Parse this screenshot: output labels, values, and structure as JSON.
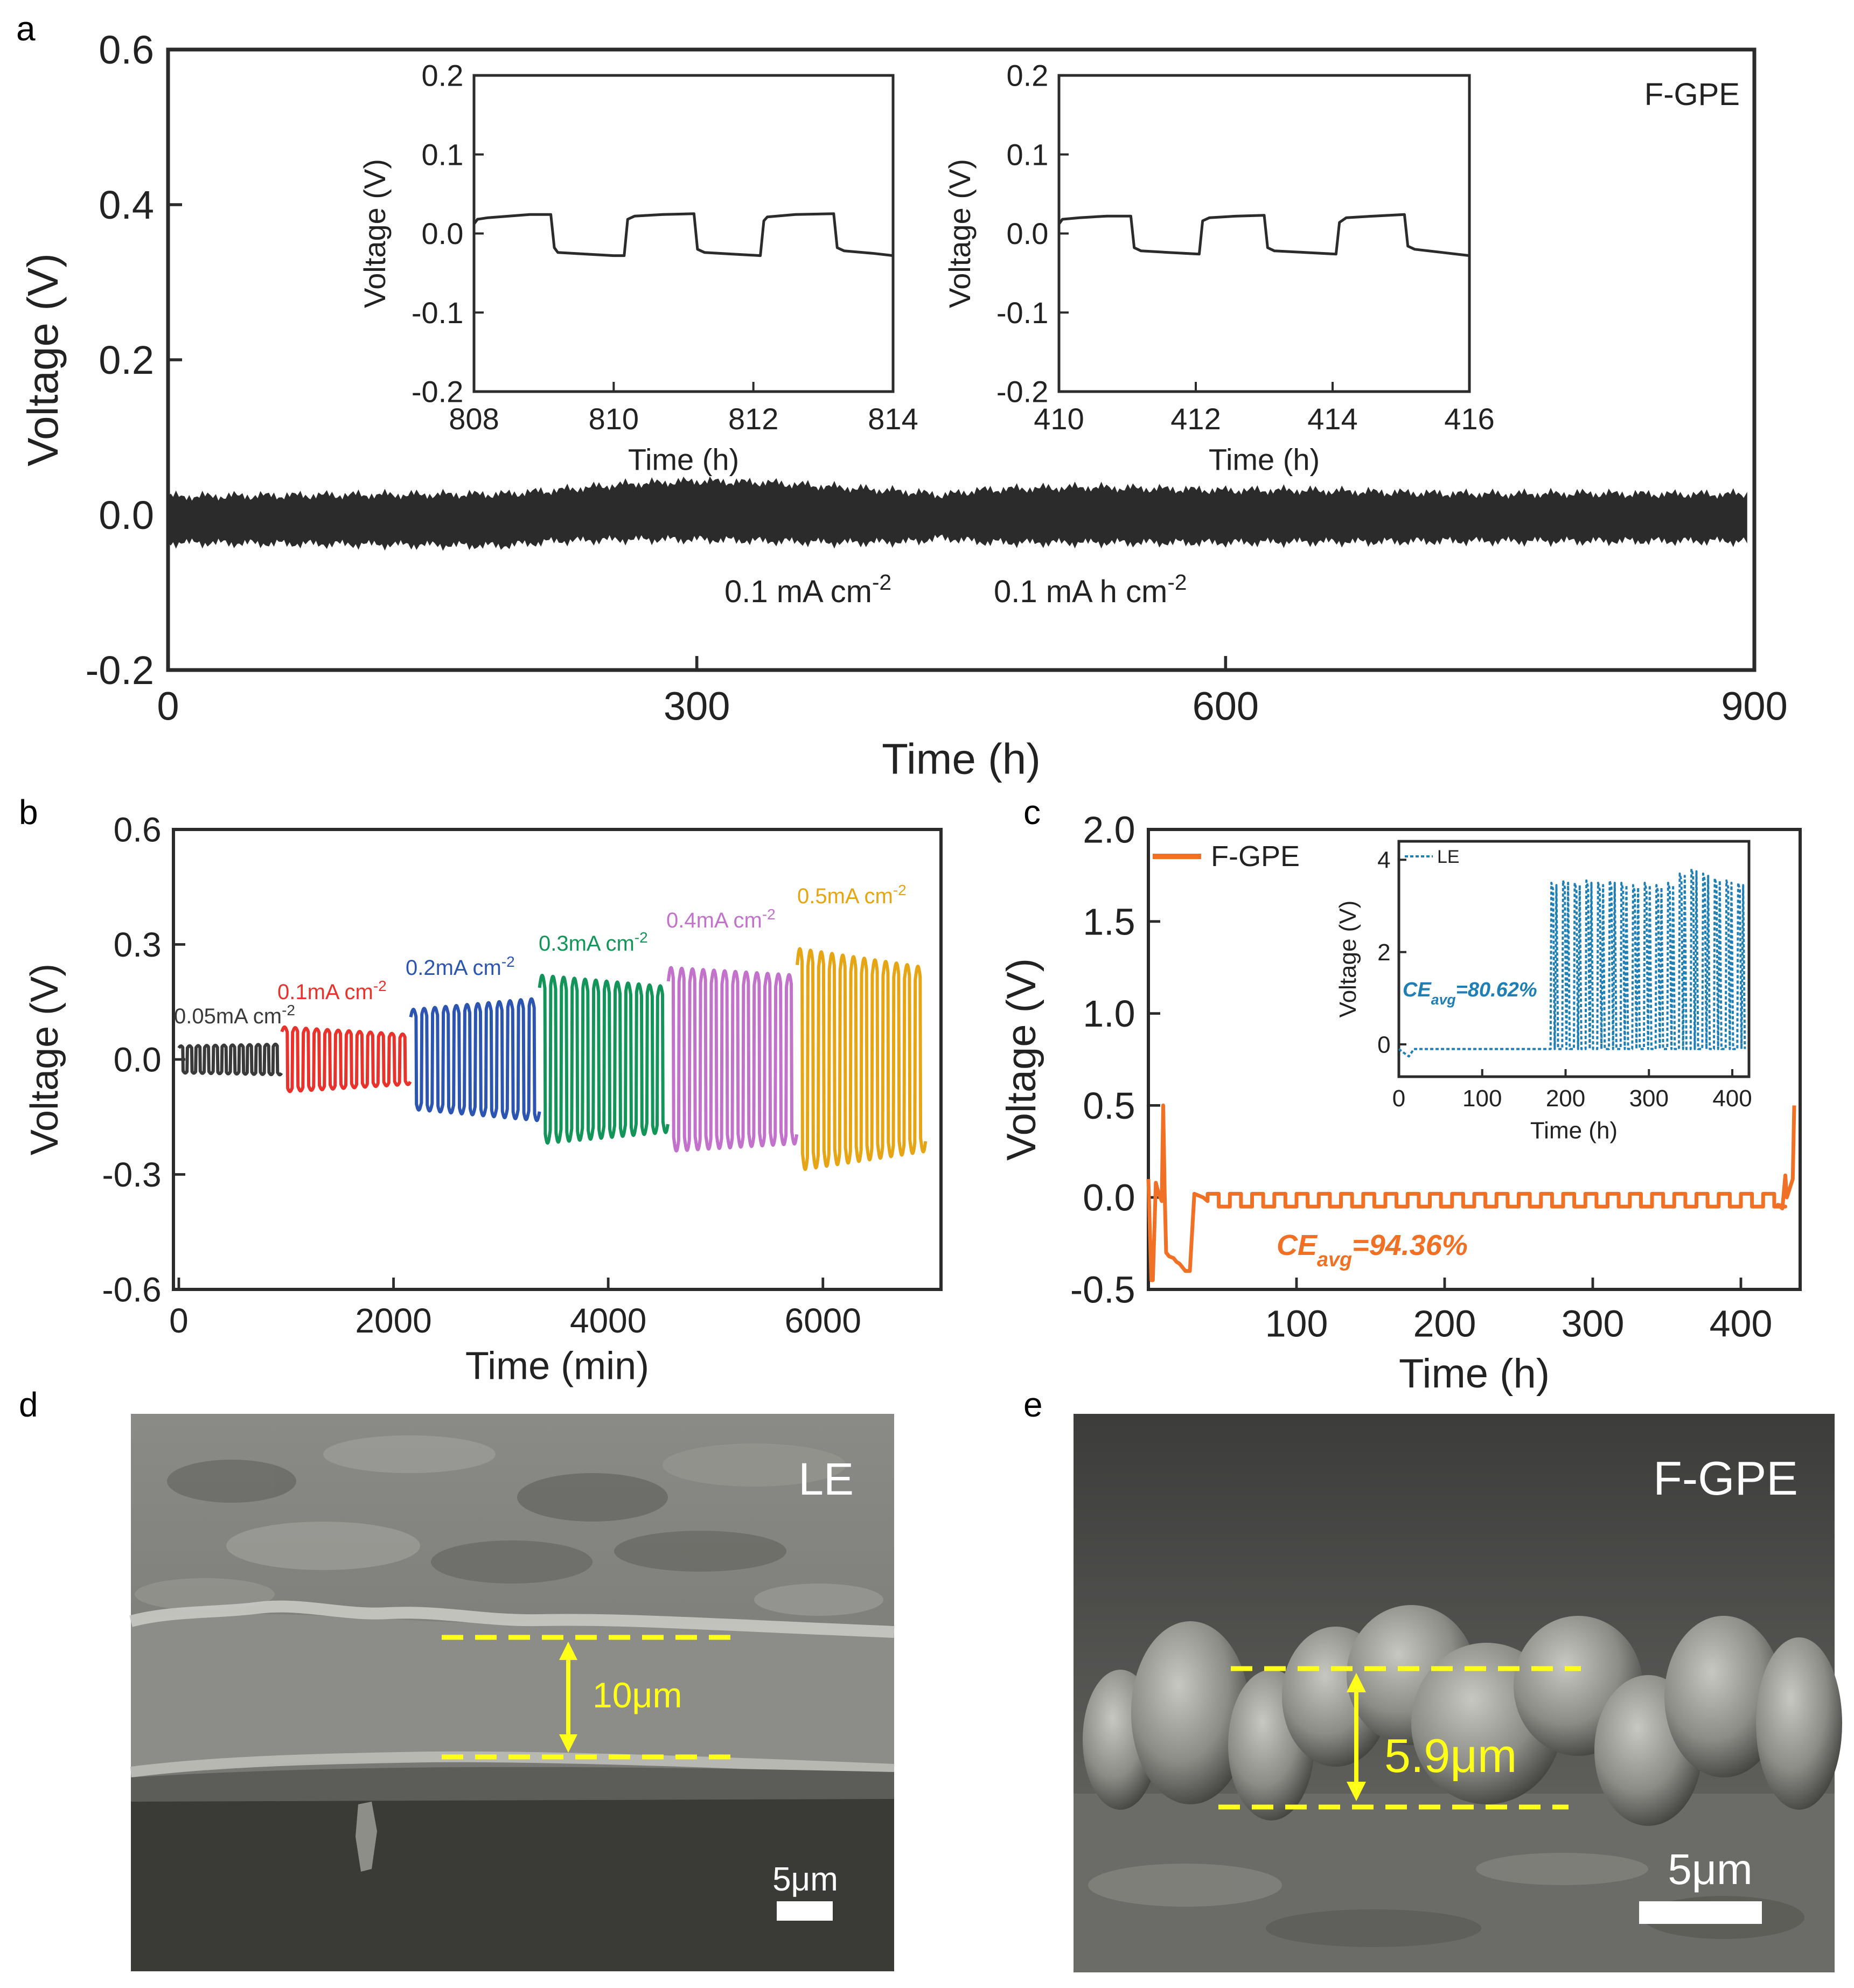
{
  "panel_labels": [
    "a",
    "b",
    "c",
    "d",
    "e"
  ],
  "chart_data": [
    {
      "id": "a",
      "type": "line",
      "title": "",
      "xlabel": "Time (h)",
      "ylabel": "Voltage (V)",
      "xlim": [
        0,
        900
      ],
      "ylim": [
        -0.2,
        0.6
      ],
      "xticks": [
        "0",
        "300",
        "600",
        "900"
      ],
      "yticks": [
        "-0.2",
        "0.0",
        "0.2",
        "0.4",
        "0.6"
      ],
      "legend_text": "F-GPE",
      "annotations": [
        {
          "text": "0.1 mA cm",
          "sup": "-2"
        },
        {
          "text": "0.1 mA h cm",
          "sup": "-2"
        }
      ],
      "series": [
        {
          "name": "F-GPE",
          "color": "#2b2b2b",
          "envelope_x": [
            0,
            100,
            190,
            220,
            260,
            300,
            340,
            380,
            420,
            440,
            460,
            480,
            520,
            560,
            600,
            640,
            680,
            720,
            760,
            800,
            850,
            896
          ],
          "envelope_upper": [
            0.022,
            0.024,
            0.025,
            0.03,
            0.038,
            0.042,
            0.04,
            0.034,
            0.028,
            0.024,
            0.03,
            0.032,
            0.034,
            0.032,
            0.03,
            0.03,
            0.028,
            0.026,
            0.025,
            0.026,
            0.025,
            0.025
          ],
          "envelope_lower": [
            -0.034,
            -0.036,
            -0.038,
            -0.032,
            -0.03,
            -0.03,
            -0.032,
            -0.034,
            -0.033,
            -0.028,
            -0.033,
            -0.034,
            -0.034,
            -0.034,
            -0.034,
            -0.033,
            -0.033,
            -0.032,
            -0.032,
            -0.032,
            -0.032,
            -0.032
          ]
        }
      ]
    },
    {
      "id": "a-inset-1",
      "type": "line",
      "xlabel": "Time (h)",
      "ylabel": "Voltage (V)",
      "xlim": [
        808,
        814
      ],
      "ylim": [
        -0.2,
        0.2
      ],
      "xticks": [
        "808",
        "810",
        "812",
        "814"
      ],
      "yticks": [
        "-0.2",
        "-0.1",
        "0.0",
        "0.1",
        "0.2"
      ],
      "series": [
        {
          "name": "",
          "color": "#2b2b2b",
          "x": [
            808.0,
            808.05,
            808.2,
            808.5,
            808.8,
            809.1,
            809.15,
            809.2,
            809.6,
            810.0,
            810.15,
            810.2,
            810.3,
            810.7,
            811.15,
            811.2,
            811.3,
            811.7,
            812.1,
            812.15,
            812.2,
            812.6,
            813.15,
            813.2,
            813.3,
            813.7,
            814.0
          ],
          "y": [
            0.012,
            0.018,
            0.02,
            0.022,
            0.024,
            0.024,
            -0.018,
            -0.024,
            -0.026,
            -0.028,
            -0.028,
            0.018,
            0.022,
            0.024,
            0.025,
            -0.02,
            -0.024,
            -0.026,
            -0.028,
            0.016,
            0.021,
            0.024,
            0.025,
            -0.018,
            -0.022,
            -0.025,
            -0.028
          ]
        }
      ]
    },
    {
      "id": "a-inset-2",
      "type": "line",
      "xlabel": "Time (h)",
      "ylabel": "Voltage (V)",
      "xlim": [
        410,
        416
      ],
      "ylim": [
        -0.2,
        0.2
      ],
      "xticks": [
        "410",
        "412",
        "414",
        "416"
      ],
      "yticks": [
        "-0.2",
        "-0.1",
        "0.0",
        "0.1",
        "0.2"
      ],
      "series": [
        {
          "name": "",
          "color": "#2b2b2b",
          "x": [
            410.0,
            410.05,
            410.3,
            410.7,
            411.05,
            411.1,
            411.2,
            411.6,
            412.05,
            412.1,
            412.2,
            412.6,
            413.0,
            413.05,
            413.15,
            413.6,
            414.05,
            414.1,
            414.2,
            414.6,
            415.05,
            415.1,
            415.2,
            415.6,
            416.0
          ],
          "y": [
            0.012,
            0.018,
            0.02,
            0.022,
            0.022,
            -0.018,
            -0.022,
            -0.024,
            -0.026,
            0.016,
            0.02,
            0.022,
            0.023,
            -0.018,
            -0.022,
            -0.024,
            -0.026,
            0.014,
            0.02,
            0.022,
            0.024,
            -0.016,
            -0.02,
            -0.024,
            -0.028
          ]
        }
      ]
    },
    {
      "id": "b",
      "type": "line",
      "xlabel": "Time (min)",
      "ylabel": "Voltage (V)",
      "xlim": [
        -50,
        7100
      ],
      "ylim": [
        -0.6,
        0.6
      ],
      "xticks": [
        "0",
        "2000",
        "4000",
        "6000"
      ],
      "yticks": [
        "-0.6",
        "-0.3",
        "0.0",
        "0.3",
        "0.6"
      ],
      "series": [
        {
          "name": "0.05mA cm",
          "sup": "-2",
          "color": "#3a3a3a",
          "t0": 0,
          "t1": 960,
          "amp_start": 0.035,
          "amp_end": 0.04
        },
        {
          "name": "0.1mA cm",
          "sup": "-2",
          "color": "#e8322b",
          "t0": 960,
          "t1": 2160,
          "amp_start": 0.085,
          "amp_end": 0.065
        },
        {
          "name": "0.2mA cm",
          "sup": "-2",
          "color": "#2c55b1",
          "t0": 2160,
          "t1": 3360,
          "amp_start": 0.13,
          "amp_end": 0.16
        },
        {
          "name": "0.3mA cm",
          "sup": "-2",
          "color": "#13955a",
          "t0": 3360,
          "t1": 4560,
          "amp_start": 0.22,
          "amp_end": 0.19
        },
        {
          "name": "0.4mA cm",
          "sup": "-2",
          "color": "#c372cc",
          "t0": 4560,
          "t1": 5760,
          "amp_start": 0.24,
          "amp_end": 0.22
        },
        {
          "name": "0.5mA cm",
          "sup": "-2",
          "color": "#e5a514",
          "t0": 5760,
          "t1": 6960,
          "amp_start": 0.29,
          "amp_end": 0.24
        }
      ]
    },
    {
      "id": "c",
      "type": "line",
      "xlabel": "Time (h)",
      "ylabel": "Voltage (V)",
      "xlim": [
        0,
        440
      ],
      "ylim": [
        -0.5,
        2.0
      ],
      "xticks": [
        "100",
        "200",
        "300",
        "400"
      ],
      "yticks": [
        "-0.5",
        "0.0",
        "0.5",
        "1.0",
        "1.5",
        "2.0"
      ],
      "legend": "top-left",
      "annotation": {
        "text": "CE",
        "sub": "avg",
        "tail": "=94.36%",
        "color": "#f07125"
      },
      "series": [
        {
          "name": "F-GPE",
          "color": "#f07125",
          "x": [
            0,
            2,
            3,
            5,
            7,
            9,
            10,
            11,
            12,
            14,
            17,
            19,
            21,
            23,
            25,
            28,
            31,
            34,
            37,
            40
          ],
          "y": [
            0.1,
            -0.45,
            -0.45,
            0.08,
            0.02,
            -0.02,
            0.5,
            0.02,
            -0.3,
            -0.32,
            -0.33,
            -0.35,
            -0.36,
            -0.38,
            -0.4,
            -0.4,
            0.02,
            0.01,
            0.0,
            -0.02
          ],
          "cycle_start": 40,
          "cycle_end": 425,
          "cycle_period": 15,
          "cycle_high": 0.02,
          "cycle_low": -0.05,
          "tail_x": [
            425,
            428,
            430,
            431,
            433,
            435,
            436
          ],
          "tail_y": [
            -0.04,
            -0.06,
            0.12,
            0.0,
            0.05,
            0.1,
            0.5
          ]
        }
      ]
    },
    {
      "id": "c-inset",
      "type": "line",
      "xlabel": "Time (h)",
      "ylabel": "Voltage (V)",
      "xlim": [
        0,
        420
      ],
      "ylim": [
        -0.7,
        4.4
      ],
      "xticks": [
        "0",
        "100",
        "200",
        "300",
        "400"
      ],
      "yticks": [
        "0",
        "2",
        "4"
      ],
      "legend": "top-left",
      "annotation": {
        "text": "CE",
        "sub": "avg",
        "tail": "=80.62%",
        "color": "#1f7fb4"
      },
      "series": [
        {
          "name": "LE",
          "color": "#1f7fb4",
          "low_start": 0,
          "low_end": 180,
          "low_value": -0.1,
          "spike_start": 182,
          "spike_end": 410,
          "spike_period": 14,
          "spike_heights": [
            3.5,
            3.55,
            3.5,
            3.55,
            3.5,
            3.55,
            3.5,
            3.45,
            3.5,
            3.45,
            3.5,
            3.7,
            3.8,
            3.7,
            3.6,
            3.55,
            3.5
          ]
        }
      ]
    }
  ],
  "sem_d": {
    "label": "LE",
    "thickness": "10μm",
    "scalebar": "5μm"
  },
  "sem_e": {
    "label": "F-GPE",
    "thickness": "5.9μm",
    "scalebar": "5μm"
  }
}
